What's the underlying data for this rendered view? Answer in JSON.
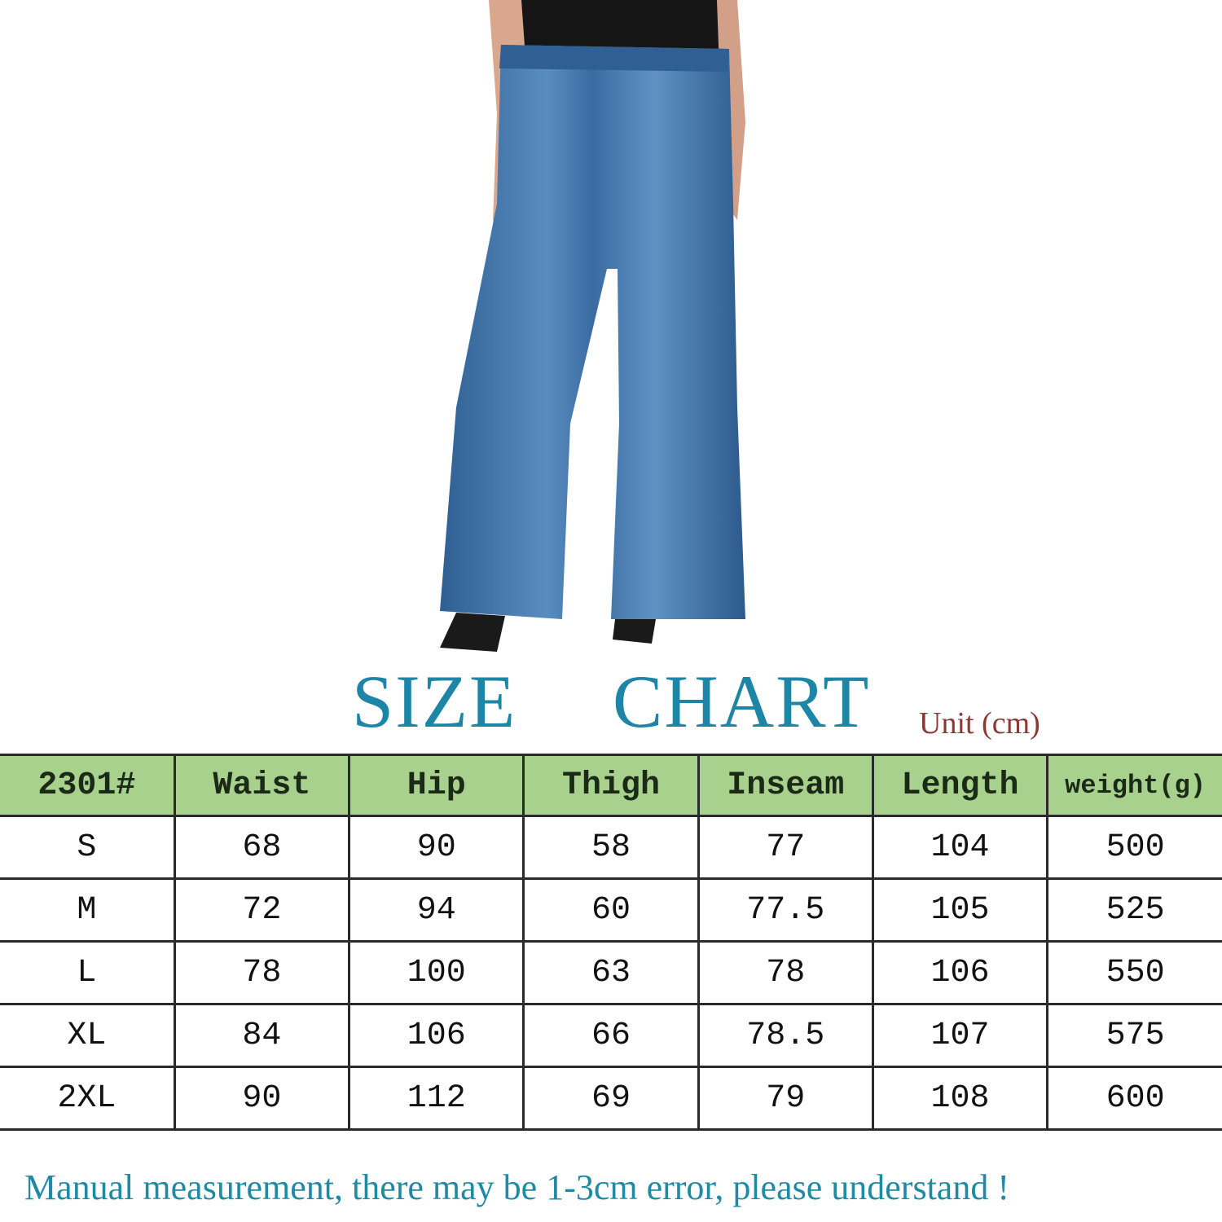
{
  "colors": {
    "title": "#1d86a6",
    "unit": "#8a3a32",
    "header_bg": "#a9d18e",
    "denim": "#3f74a8",
    "note": "#1f8aa3"
  },
  "title": {
    "word1": "SIZE",
    "word2": "CHART",
    "unit": "Unit (cm)"
  },
  "table": {
    "headers": [
      "2301#",
      "Waist",
      "Hip",
      "Thigh",
      "Inseam",
      "Length",
      "weight(g)"
    ],
    "rows": [
      [
        "S",
        "68",
        "90",
        "58",
        "77",
        "104",
        "500"
      ],
      [
        "M",
        "72",
        "94",
        "60",
        "77.5",
        "105",
        "525"
      ],
      [
        "L",
        "78",
        "100",
        "63",
        "78",
        "106",
        "550"
      ],
      [
        "XL",
        "84",
        "106",
        "66",
        "78.5",
        "107",
        "575"
      ],
      [
        "2XL",
        "90",
        "112",
        "69",
        "79",
        "108",
        "600"
      ]
    ]
  },
  "note": "Manual measurement, there may be 1-3cm error, please understand !"
}
